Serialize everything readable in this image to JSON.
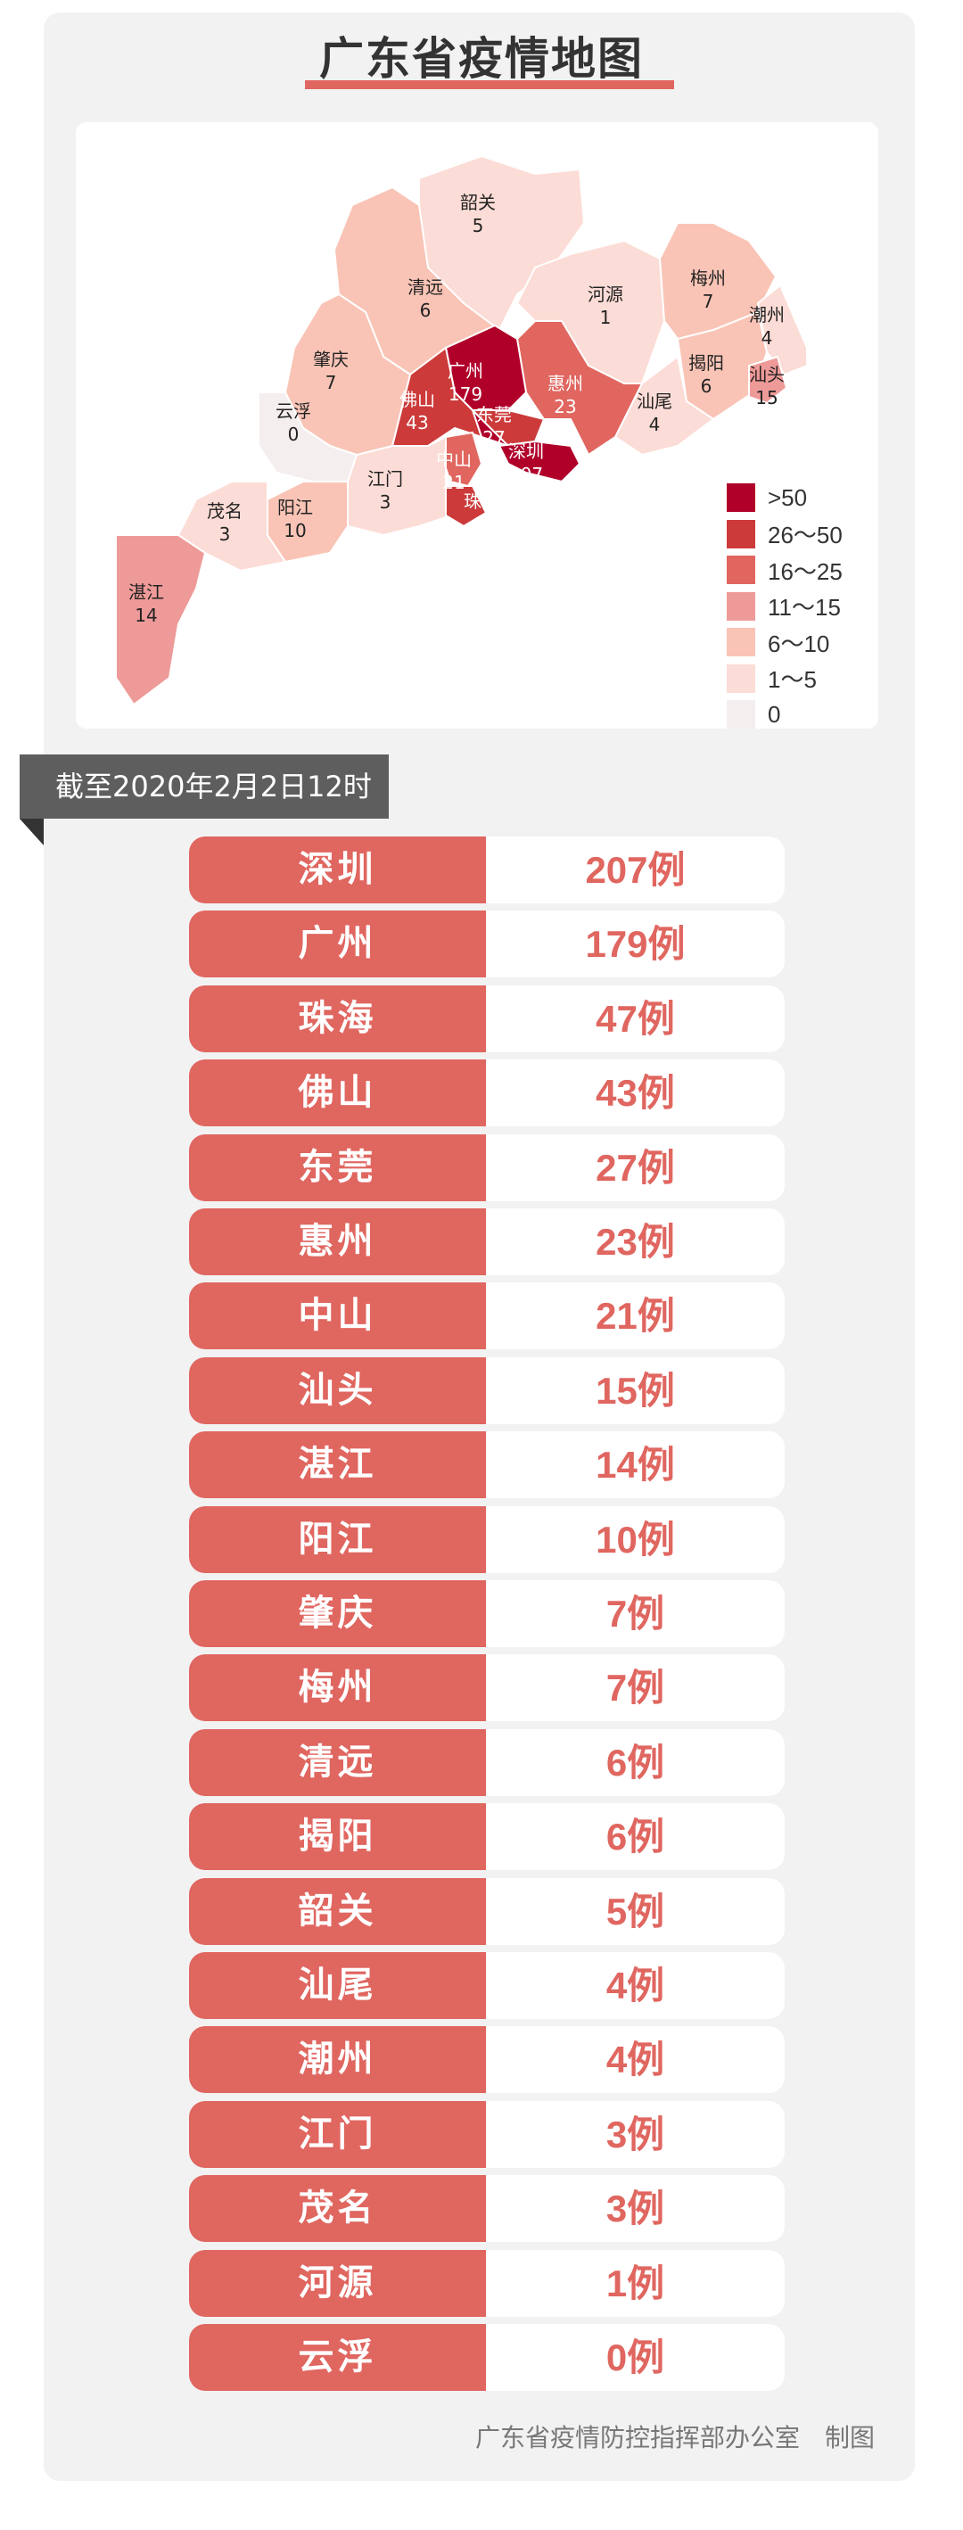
{
  "title": "广东省疫情地图",
  "date_banner": "截至2020年2月2日12时",
  "footer": "广东省疫情防控指挥部办公室　制图",
  "legend": [
    {
      "label": ">50",
      "color": "#b0002a"
    },
    {
      "label": "26～50",
      "color": "#cc3a3a"
    },
    {
      "label": "16～25",
      "color": "#e0665f"
    },
    {
      "label": "11～15",
      "color": "#ee9a98"
    },
    {
      "label": "6～10",
      "color": "#f9c4b6"
    },
    {
      "label": "1～5",
      "color": "#fcdcd6"
    },
    {
      "label": "0",
      "color": "#f5eeee"
    }
  ],
  "cities": [
    {
      "name": "深圳",
      "count": 207,
      "value_label": "207例"
    },
    {
      "name": "广州",
      "count": 179,
      "value_label": "179例"
    },
    {
      "name": "珠海",
      "count": 47,
      "value_label": "47例"
    },
    {
      "name": "佛山",
      "count": 43,
      "value_label": "43例"
    },
    {
      "name": "东莞",
      "count": 27,
      "value_label": "27例"
    },
    {
      "name": "惠州",
      "count": 23,
      "value_label": "23例"
    },
    {
      "name": "中山",
      "count": 21,
      "value_label": "21例"
    },
    {
      "name": "汕头",
      "count": 15,
      "value_label": "15例"
    },
    {
      "name": "湛江",
      "count": 14,
      "value_label": "14例"
    },
    {
      "name": "阳江",
      "count": 10,
      "value_label": "10例"
    },
    {
      "name": "肇庆",
      "count": 7,
      "value_label": "7例"
    },
    {
      "name": "梅州",
      "count": 7,
      "value_label": "7例"
    },
    {
      "name": "清远",
      "count": 6,
      "value_label": "6例"
    },
    {
      "name": "揭阳",
      "count": 6,
      "value_label": "6例"
    },
    {
      "name": "韶关",
      "count": 5,
      "value_label": "5例"
    },
    {
      "name": "汕尾",
      "count": 4,
      "value_label": "4例"
    },
    {
      "name": "潮州",
      "count": 4,
      "value_label": "4例"
    },
    {
      "name": "江门",
      "count": 3,
      "value_label": "3例"
    },
    {
      "name": "茂名",
      "count": 3,
      "value_label": "3例"
    },
    {
      "name": "河源",
      "count": 1,
      "value_label": "1例"
    },
    {
      "name": "云浮",
      "count": 0,
      "value_label": "0例"
    }
  ],
  "colors": {
    "accent": "#e06660",
    "banner": "#5e5e5e",
    "card": "#f2f2f2"
  }
}
